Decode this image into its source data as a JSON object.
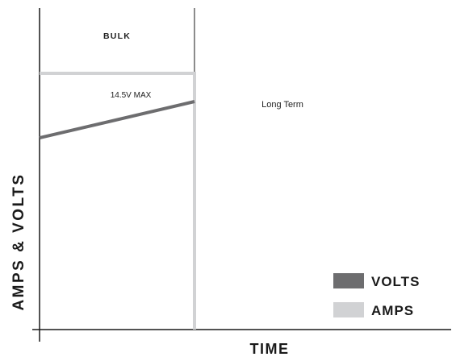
{
  "chart_data": {
    "type": "line",
    "title": "",
    "xlabel": "TIME",
    "ylabel": "AMPS & VOLTS",
    "phase_label": "BULK",
    "phase_right_label": "Long Term",
    "annotation": "14.5V MAX",
    "grid": false,
    "legend_position": "bottom-right",
    "xlim": [
      0,
      100
    ],
    "ylim": [
      0,
      100
    ],
    "phase_boundary_x": [
      37.2
    ],
    "series": [
      {
        "name": "VOLTS",
        "color": "#6d6d6f",
        "x": [
          0,
          37.2
        ],
        "y": [
          74.8,
          89.0
        ]
      },
      {
        "name": "AMPS",
        "color": "#d1d2d4",
        "x": [
          0,
          37.2,
          37.2
        ],
        "y": [
          100,
          100,
          0
        ]
      }
    ]
  }
}
